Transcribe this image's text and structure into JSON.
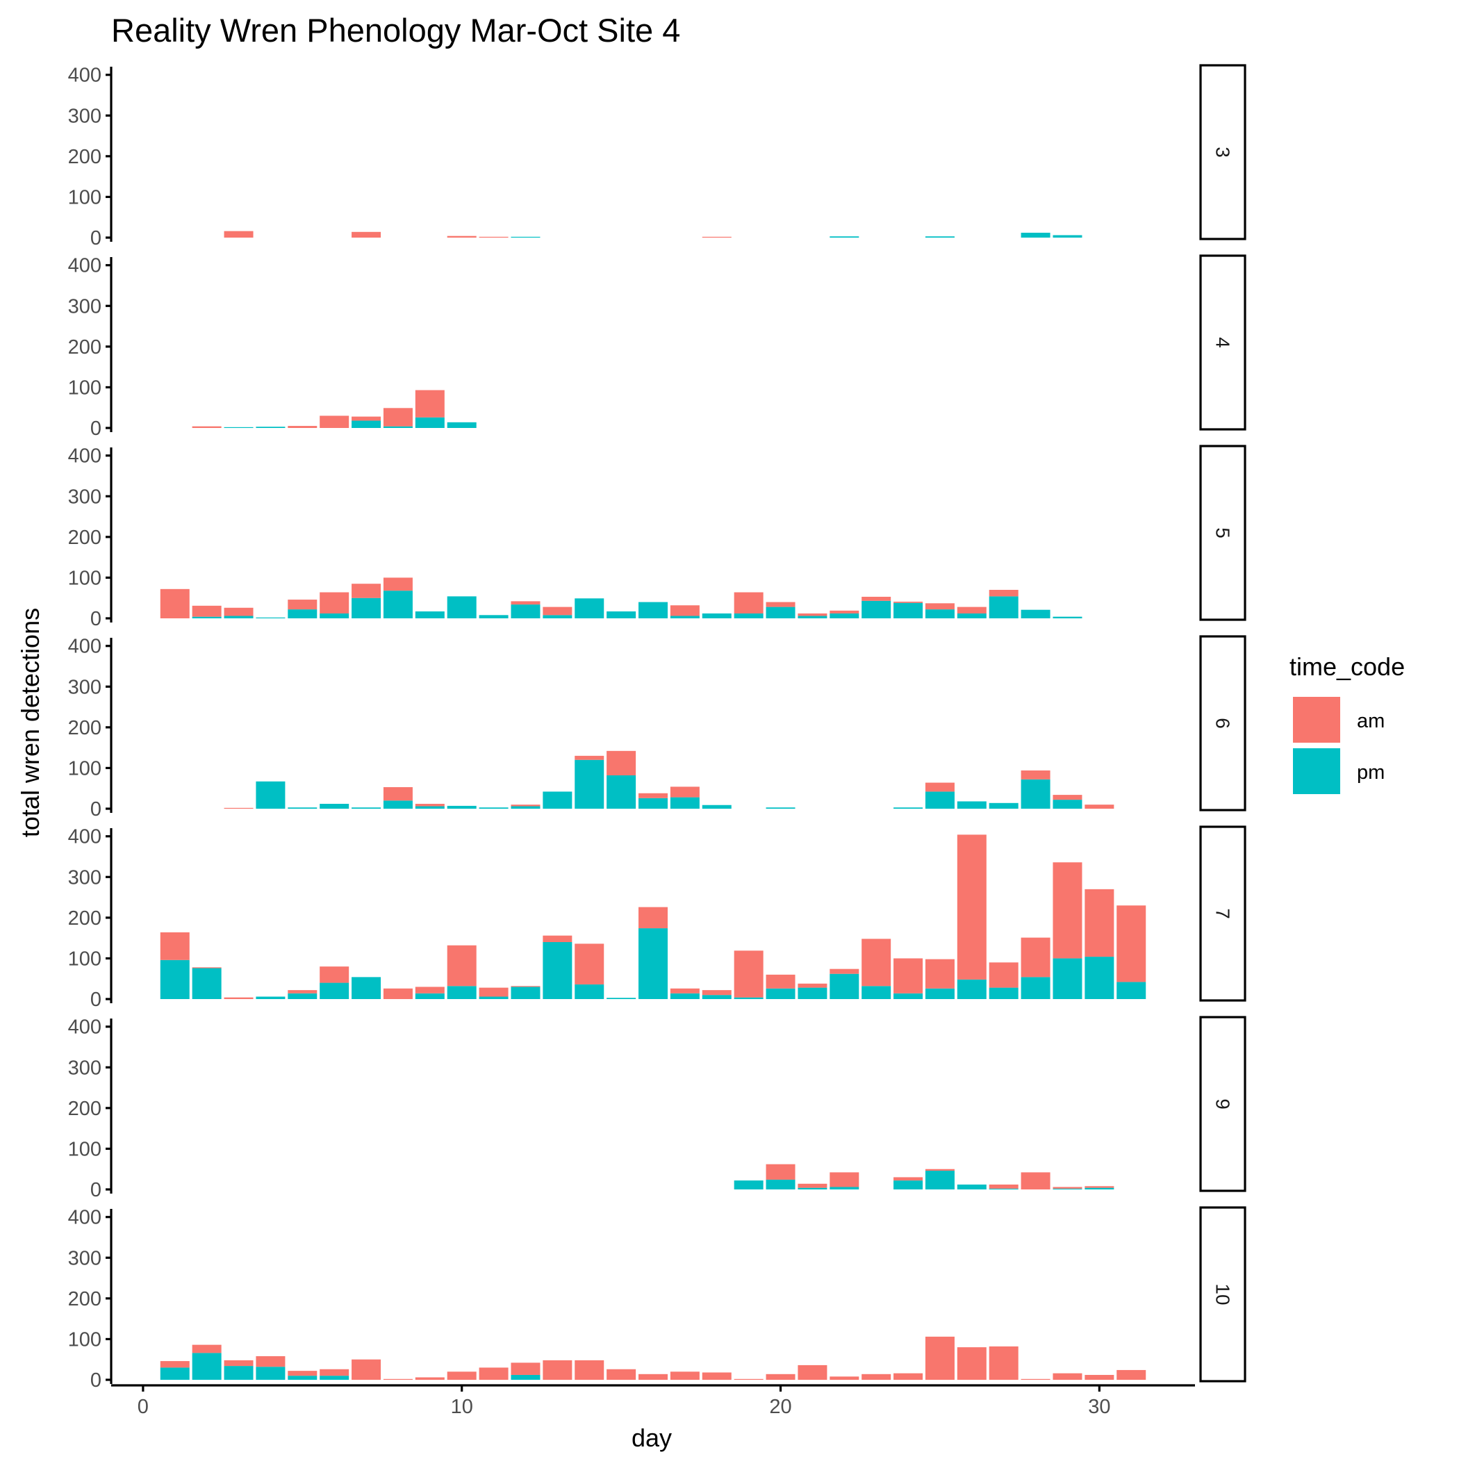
{
  "chart_data": {
    "type": "bar",
    "stacked": true,
    "title": "Reality Wren Phenology Mar-Oct Site 4",
    "xlabel": "day",
    "ylabel": "total wren detections",
    "xlim": [
      -1,
      33
    ],
    "ylim": [
      0,
      420
    ],
    "x_ticks": [
      0,
      10,
      20,
      30
    ],
    "y_ticks": [
      0,
      100,
      200,
      300,
      400
    ],
    "legend": {
      "title": "time_code",
      "position": "right",
      "entries": [
        {
          "name": "am",
          "color": "#F8766D"
        },
        {
          "name": "pm",
          "color": "#00BFC4"
        }
      ]
    },
    "facet_by": "month",
    "facets": [
      {
        "label": "3",
        "days": [
          3,
          7,
          10,
          11,
          12,
          18,
          22,
          25,
          28,
          29
        ],
        "am": [
          16,
          14,
          4,
          2,
          0,
          2,
          0,
          0,
          0,
          0
        ],
        "pm": [
          0,
          0,
          0,
          0,
          2,
          0,
          3,
          3,
          12,
          6
        ]
      },
      {
        "label": "4",
        "days": [
          2,
          3,
          4,
          5,
          6,
          7,
          8,
          9,
          10
        ],
        "am": [
          4,
          0,
          0,
          5,
          30,
          10,
          45,
          67,
          0
        ],
        "pm": [
          0,
          2,
          3,
          0,
          0,
          18,
          4,
          26,
          14
        ]
      },
      {
        "label": "5",
        "days": [
          1,
          2,
          3,
          4,
          5,
          6,
          7,
          8,
          9,
          10,
          11,
          12,
          13,
          14,
          15,
          16,
          17,
          18,
          19,
          20,
          21,
          22,
          23,
          24,
          25,
          26,
          27,
          28,
          29
        ],
        "am": [
          72,
          27,
          20,
          0,
          24,
          52,
          35,
          32,
          0,
          0,
          0,
          8,
          20,
          0,
          0,
          0,
          26,
          0,
          52,
          12,
          6,
          7,
          10,
          3,
          15,
          16,
          16,
          0,
          0
        ],
        "pm": [
          0,
          4,
          6,
          2,
          22,
          12,
          50,
          68,
          17,
          54,
          8,
          34,
          8,
          49,
          17,
          40,
          6,
          12,
          12,
          28,
          6,
          12,
          43,
          38,
          22,
          12,
          54,
          21,
          4
        ]
      },
      {
        "label": "6",
        "days": [
          3,
          4,
          5,
          6,
          7,
          8,
          9,
          10,
          11,
          12,
          13,
          14,
          15,
          16,
          17,
          18,
          20,
          24,
          25,
          26,
          27,
          28,
          29,
          30
        ],
        "am": [
          2,
          0,
          0,
          0,
          0,
          33,
          6,
          0,
          0,
          4,
          0,
          10,
          60,
          12,
          26,
          0,
          0,
          0,
          22,
          0,
          0,
          22,
          12,
          10
        ],
        "pm": [
          0,
          67,
          3,
          12,
          3,
          20,
          6,
          7,
          3,
          6,
          42,
          120,
          82,
          26,
          28,
          9,
          3,
          3,
          42,
          18,
          14,
          72,
          22,
          0
        ]
      },
      {
        "label": "7",
        "days": [
          1,
          2,
          3,
          4,
          5,
          6,
          7,
          8,
          9,
          10,
          11,
          12,
          13,
          14,
          15,
          16,
          17,
          18,
          19,
          20,
          21,
          22,
          23,
          24,
          25,
          26,
          27,
          28,
          29,
          30,
          31
        ],
        "am": [
          68,
          2,
          4,
          0,
          8,
          40,
          0,
          26,
          16,
          100,
          22,
          2,
          16,
          100,
          0,
          52,
          12,
          12,
          115,
          34,
          10,
          12,
          116,
          86,
          72,
          356,
          62,
          97,
          236,
          166,
          188
        ],
        "pm": [
          96,
          76,
          0,
          6,
          14,
          40,
          54,
          0,
          14,
          32,
          6,
          30,
          140,
          36,
          3,
          174,
          14,
          10,
          4,
          26,
          28,
          62,
          32,
          14,
          26,
          48,
          28,
          54,
          100,
          104,
          42
        ]
      },
      {
        "label": "9",
        "days": [
          19,
          20,
          21,
          22,
          24,
          25,
          26,
          27,
          28,
          29,
          30
        ],
        "am": [
          0,
          38,
          10,
          36,
          8,
          4,
          0,
          10,
          42,
          4,
          4
        ],
        "pm": [
          22,
          24,
          4,
          6,
          22,
          46,
          12,
          2,
          0,
          2,
          4
        ]
      },
      {
        "label": "10",
        "days": [
          1,
          2,
          3,
          4,
          5,
          6,
          7,
          8,
          9,
          10,
          11,
          12,
          13,
          14,
          15,
          16,
          17,
          18,
          19,
          20,
          21,
          22,
          23,
          24,
          25,
          26,
          27,
          28,
          29,
          30,
          31
        ],
        "am": [
          16,
          20,
          14,
          26,
          12,
          16,
          50,
          2,
          6,
          20,
          30,
          30,
          48,
          48,
          26,
          14,
          20,
          18,
          2,
          14,
          36,
          8,
          14,
          16,
          106,
          80,
          82,
          2,
          16,
          12,
          24
        ],
        "pm": [
          30,
          66,
          34,
          32,
          10,
          10,
          0,
          0,
          0,
          0,
          0,
          12,
          0,
          0,
          0,
          0,
          0,
          0,
          0,
          0,
          0,
          0,
          0,
          0,
          0,
          0,
          0,
          0,
          0,
          0,
          0
        ]
      }
    ]
  }
}
